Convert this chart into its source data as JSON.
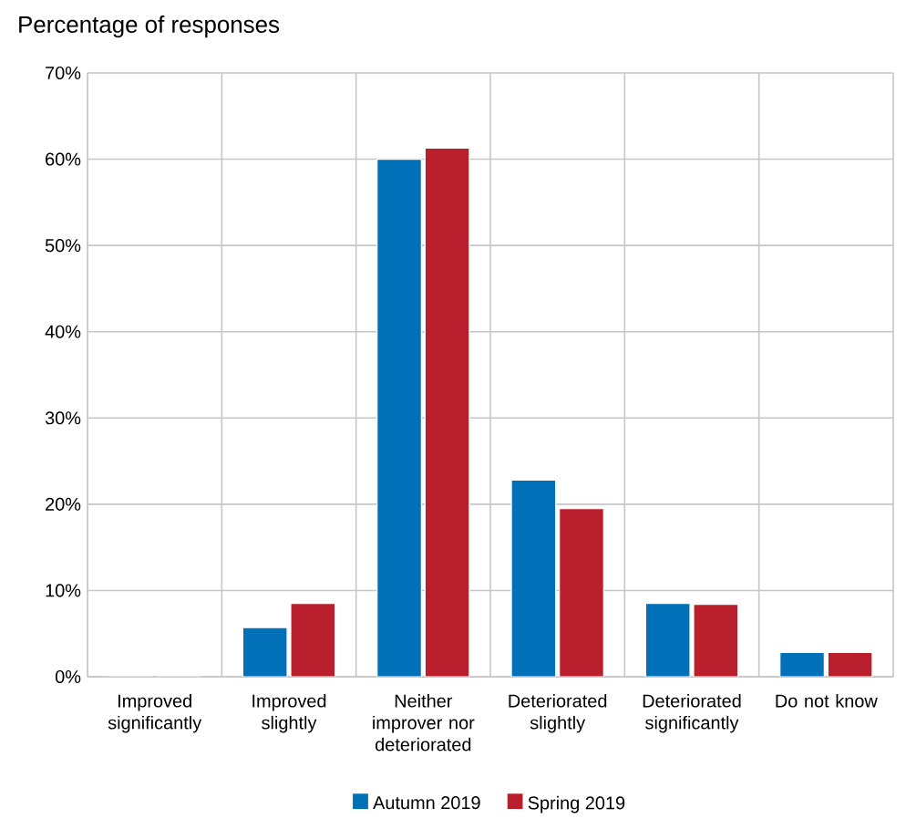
{
  "chart_data": {
    "type": "bar",
    "ylabel": "Percentage of responses",
    "categories": [
      "Improved significantly",
      "Improved slightly",
      "Neither improver nor deteriorated",
      "Deteriorated slightly",
      "Deteriorated significantly",
      "Do not know"
    ],
    "series": [
      {
        "name": "Autumn 2019",
        "color": "#0070b8",
        "values": [
          0,
          5.7,
          60,
          22.8,
          8.5,
          2.8
        ]
      },
      {
        "name": "Spring 2019",
        "color": "#ba1f2d",
        "values": [
          0,
          8.5,
          61.3,
          19.5,
          8.4,
          2.8
        ]
      }
    ],
    "ylim": [
      0,
      70
    ],
    "yticks": [
      {
        "value": 0,
        "label": "0%"
      },
      {
        "value": 10,
        "label": "10%"
      },
      {
        "value": 20,
        "label": "20%"
      },
      {
        "value": 30,
        "label": "30%"
      },
      {
        "value": 40,
        "label": "40%"
      },
      {
        "value": 50,
        "label": "50%"
      },
      {
        "value": 60,
        "label": "60%"
      },
      {
        "value": 70,
        "label": "70%"
      }
    ],
    "grid": true,
    "legend": "bottom"
  }
}
